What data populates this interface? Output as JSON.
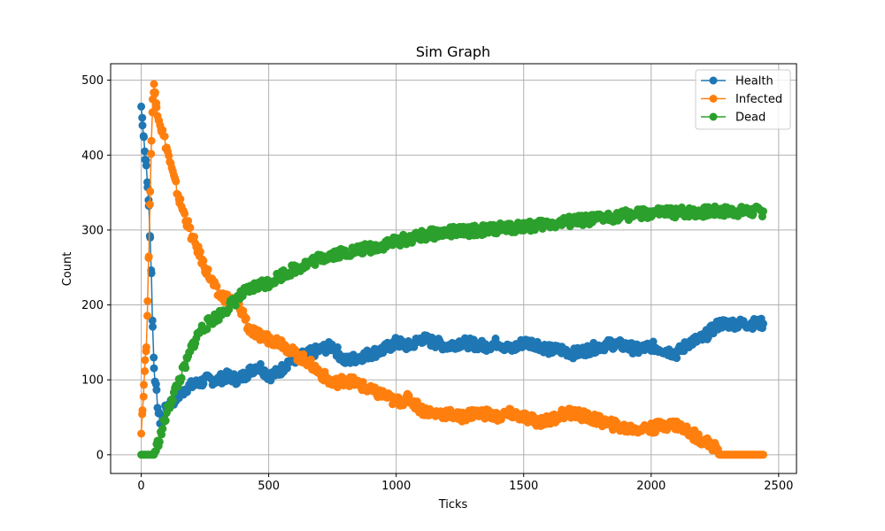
{
  "chart_data": {
    "type": "line",
    "title": "Sim Graph",
    "xlabel": "Ticks",
    "ylabel": "Count",
    "xlim": [
      -120,
      2570
    ],
    "ylim": [
      -25,
      522
    ],
    "xticks": [
      0,
      500,
      1000,
      1500,
      2000,
      2500
    ],
    "yticks": [
      0,
      100,
      200,
      300,
      400,
      500
    ],
    "grid": true,
    "legend_position": "top-right",
    "marker": "circle",
    "series": [
      {
        "name": "Health",
        "color": "#1f77b4",
        "points": [
          [
            0,
            465
          ],
          [
            5,
            445
          ],
          [
            10,
            425
          ],
          [
            15,
            400
          ],
          [
            20,
            385
          ],
          [
            25,
            360
          ],
          [
            30,
            330
          ],
          [
            35,
            290
          ],
          [
            40,
            240
          ],
          [
            45,
            170
          ],
          [
            50,
            120
          ],
          [
            60,
            80
          ],
          [
            70,
            50
          ],
          [
            80,
            40
          ],
          [
            90,
            55
          ],
          [
            100,
            65
          ],
          [
            120,
            70
          ],
          [
            150,
            80
          ],
          [
            180,
            90
          ],
          [
            220,
            95
          ],
          [
            260,
            100
          ],
          [
            300,
            100
          ],
          [
            340,
            105
          ],
          [
            380,
            100
          ],
          [
            420,
            110
          ],
          [
            460,
            120
          ],
          [
            500,
            105
          ],
          [
            540,
            110
          ],
          [
            580,
            125
          ],
          [
            620,
            130
          ],
          [
            660,
            135
          ],
          [
            700,
            140
          ],
          [
            750,
            145
          ],
          [
            800,
            125
          ],
          [
            850,
            130
          ],
          [
            900,
            135
          ],
          [
            950,
            140
          ],
          [
            1000,
            150
          ],
          [
            1050,
            145
          ],
          [
            1100,
            155
          ],
          [
            1150,
            150
          ],
          [
            1200,
            145
          ],
          [
            1250,
            150
          ],
          [
            1300,
            148
          ],
          [
            1350,
            145
          ],
          [
            1400,
            150
          ],
          [
            1450,
            140
          ],
          [
            1500,
            150
          ],
          [
            1550,
            148
          ],
          [
            1600,
            140
          ],
          [
            1650,
            140
          ],
          [
            1700,
            135
          ],
          [
            1750,
            140
          ],
          [
            1800,
            145
          ],
          [
            1850,
            148
          ],
          [
            1900,
            145
          ],
          [
            1950,
            140
          ],
          [
            2000,
            145
          ],
          [
            2050,
            140
          ],
          [
            2100,
            135
          ],
          [
            2150,
            150
          ],
          [
            2200,
            155
          ],
          [
            2250,
            170
          ],
          [
            2270,
            175
          ],
          [
            2300,
            175
          ],
          [
            2350,
            175
          ],
          [
            2400,
            175
          ],
          [
            2440,
            175
          ]
        ]
      },
      {
        "name": "Infected",
        "color": "#ff7f0e",
        "points": [
          [
            0,
            35
          ],
          [
            5,
            60
          ],
          [
            10,
            90
          ],
          [
            15,
            120
          ],
          [
            20,
            150
          ],
          [
            25,
            200
          ],
          [
            30,
            270
          ],
          [
            35,
            350
          ],
          [
            40,
            420
          ],
          [
            45,
            470
          ],
          [
            50,
            495
          ],
          [
            55,
            480
          ],
          [
            60,
            465
          ],
          [
            70,
            450
          ],
          [
            80,
            435
          ],
          [
            100,
            410
          ],
          [
            120,
            380
          ],
          [
            150,
            340
          ],
          [
            180,
            310
          ],
          [
            200,
            290
          ],
          [
            220,
            275
          ],
          [
            250,
            250
          ],
          [
            280,
            230
          ],
          [
            300,
            215
          ],
          [
            330,
            210
          ],
          [
            360,
            205
          ],
          [
            400,
            190
          ],
          [
            420,
            170
          ],
          [
            450,
            160
          ],
          [
            500,
            155
          ],
          [
            550,
            150
          ],
          [
            600,
            135
          ],
          [
            650,
            125
          ],
          [
            700,
            110
          ],
          [
            750,
            95
          ],
          [
            800,
            100
          ],
          [
            850,
            95
          ],
          [
            900,
            85
          ],
          [
            950,
            80
          ],
          [
            1000,
            70
          ],
          [
            1050,
            75
          ],
          [
            1100,
            60
          ],
          [
            1150,
            55
          ],
          [
            1200,
            55
          ],
          [
            1250,
            50
          ],
          [
            1300,
            55
          ],
          [
            1350,
            55
          ],
          [
            1400,
            50
          ],
          [
            1450,
            55
          ],
          [
            1500,
            50
          ],
          [
            1550,
            45
          ],
          [
            1600,
            45
          ],
          [
            1650,
            55
          ],
          [
            1700,
            55
          ],
          [
            1750,
            50
          ],
          [
            1800,
            45
          ],
          [
            1850,
            40
          ],
          [
            1900,
            35
          ],
          [
            1950,
            35
          ],
          [
            2000,
            35
          ],
          [
            2050,
            40
          ],
          [
            2100,
            40
          ],
          [
            2150,
            30
          ],
          [
            2200,
            20
          ],
          [
            2250,
            10
          ],
          [
            2270,
            0
          ],
          [
            2300,
            0
          ],
          [
            2350,
            0
          ],
          [
            2400,
            0
          ],
          [
            2440,
            0
          ]
        ]
      },
      {
        "name": "Dead",
        "color": "#2ca02c",
        "points": [
          [
            0,
            0
          ],
          [
            20,
            0
          ],
          [
            40,
            0
          ],
          [
            50,
            0
          ],
          [
            60,
            10
          ],
          [
            80,
            30
          ],
          [
            100,
            55
          ],
          [
            120,
            75
          ],
          [
            150,
            100
          ],
          [
            180,
            125
          ],
          [
            200,
            145
          ],
          [
            230,
            165
          ],
          [
            260,
            175
          ],
          [
            300,
            185
          ],
          [
            350,
            200
          ],
          [
            400,
            215
          ],
          [
            450,
            225
          ],
          [
            500,
            230
          ],
          [
            550,
            240
          ],
          [
            600,
            248
          ],
          [
            650,
            255
          ],
          [
            700,
            262
          ],
          [
            750,
            268
          ],
          [
            800,
            270
          ],
          [
            850,
            273
          ],
          [
            900,
            276
          ],
          [
            950,
            280
          ],
          [
            1000,
            285
          ],
          [
            1050,
            288
          ],
          [
            1100,
            292
          ],
          [
            1150,
            295
          ],
          [
            1200,
            297
          ],
          [
            1250,
            298
          ],
          [
            1300,
            299
          ],
          [
            1350,
            300
          ],
          [
            1400,
            302
          ],
          [
            1450,
            303
          ],
          [
            1500,
            305
          ],
          [
            1550,
            306
          ],
          [
            1600,
            308
          ],
          [
            1650,
            310
          ],
          [
            1700,
            312
          ],
          [
            1750,
            313
          ],
          [
            1800,
            315
          ],
          [
            1850,
            318
          ],
          [
            1900,
            320
          ],
          [
            1950,
            321
          ],
          [
            2000,
            322
          ],
          [
            2050,
            323
          ],
          [
            2100,
            323
          ],
          [
            2150,
            324
          ],
          [
            2200,
            324
          ],
          [
            2250,
            325
          ],
          [
            2300,
            325
          ],
          [
            2350,
            325
          ],
          [
            2400,
            325
          ],
          [
            2440,
            325
          ]
        ]
      }
    ]
  }
}
